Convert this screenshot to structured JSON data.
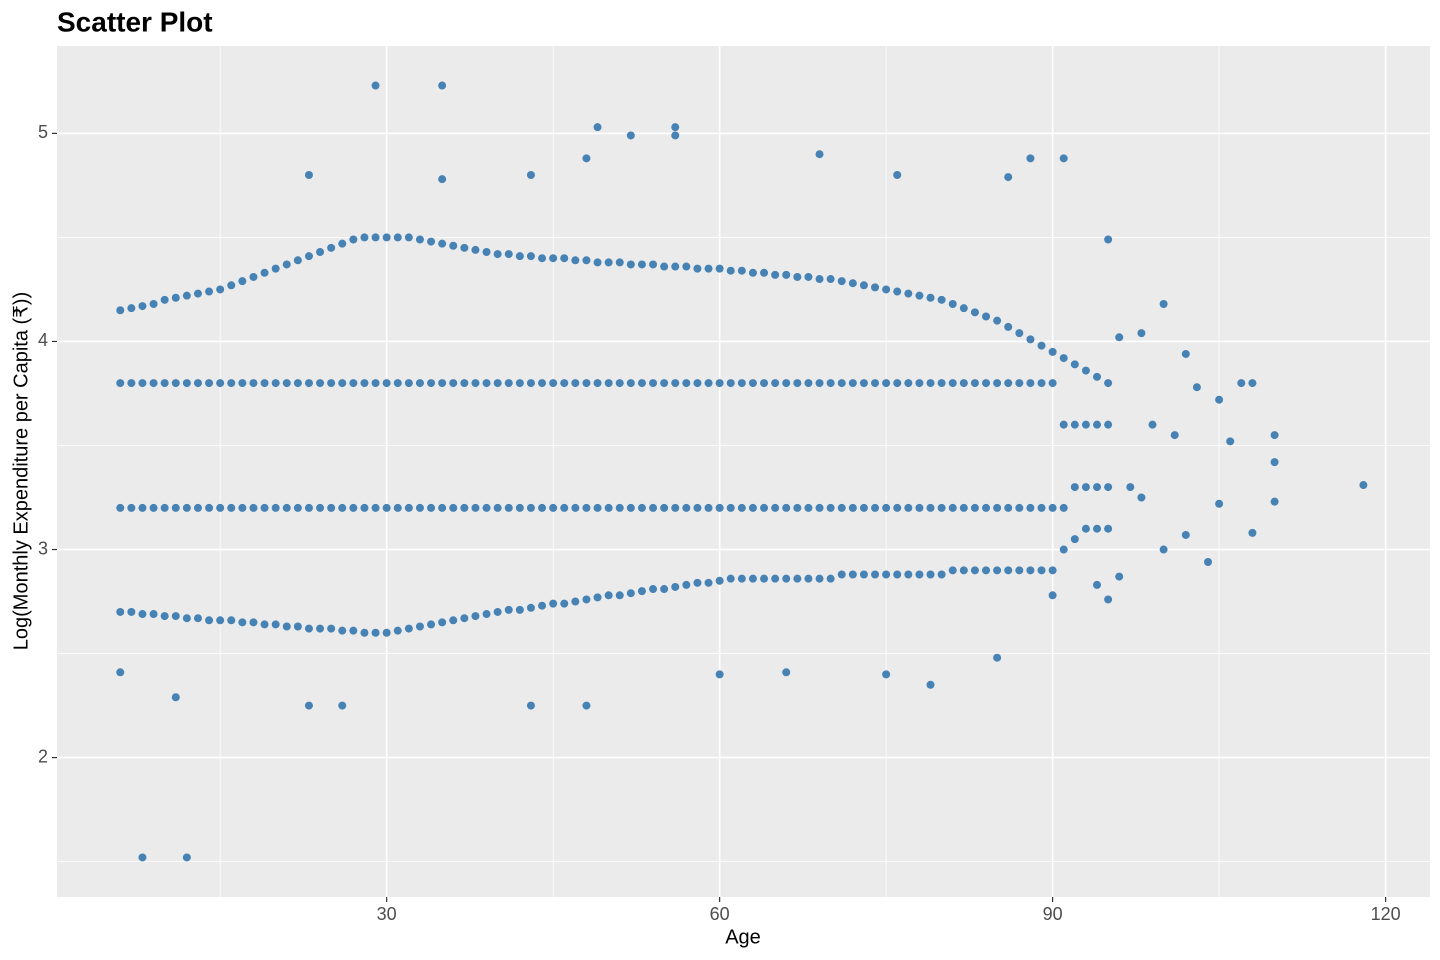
{
  "chart_data": {
    "type": "scatter",
    "title": "Scatter Plot",
    "x_label": "Age",
    "y_label": "Log(Monthly Expenditure per Capita (₹))",
    "color": "#4682b4",
    "grid": true,
    "xlim": [
      0.3,
      124
    ],
    "xticks": [
      30,
      60,
      90,
      120
    ],
    "ylim": [
      1.33,
      5.42
    ],
    "yticks": [
      2,
      3,
      4,
      5
    ],
    "x": [
      6,
      6,
      6,
      6,
      7,
      7,
      7,
      7,
      8,
      8,
      8,
      8,
      9,
      9,
      9,
      9,
      10,
      10,
      10,
      10,
      11,
      11,
      11,
      11,
      12,
      12,
      12,
      12,
      13,
      13,
      13,
      13,
      14,
      14,
      14,
      14,
      15,
      15,
      15,
      15,
      16,
      16,
      16,
      16,
      17,
      17,
      17,
      17,
      18,
      18,
      18,
      18,
      19,
      19,
      19,
      19,
      20,
      20,
      20,
      20,
      21,
      21,
      21,
      21,
      22,
      22,
      22,
      22,
      23,
      23,
      23,
      23,
      24,
      24,
      24,
      24,
      25,
      25,
      25,
      25,
      26,
      26,
      26,
      26,
      27,
      27,
      27,
      27,
      28,
      28,
      28,
      28,
      29,
      29,
      29,
      29,
      30,
      30,
      30,
      30,
      31,
      31,
      31,
      31,
      32,
      32,
      32,
      32,
      33,
      33,
      33,
      33,
      34,
      34,
      34,
      34,
      35,
      35,
      35,
      35,
      36,
      36,
      36,
      36,
      37,
      37,
      37,
      37,
      38,
      38,
      38,
      38,
      39,
      39,
      39,
      39,
      40,
      40,
      40,
      40,
      41,
      41,
      41,
      41,
      42,
      42,
      42,
      42,
      43,
      43,
      43,
      43,
      44,
      44,
      44,
      44,
      45,
      45,
      45,
      45,
      46,
      46,
      46,
      46,
      47,
      47,
      47,
      47,
      48,
      48,
      48,
      48,
      49,
      49,
      49,
      49,
      50,
      50,
      50,
      50,
      51,
      51,
      51,
      51,
      52,
      52,
      52,
      52,
      53,
      53,
      53,
      53,
      54,
      54,
      54,
      54,
      55,
      55,
      55,
      55,
      56,
      56,
      56,
      56,
      57,
      57,
      57,
      57,
      58,
      58,
      58,
      58,
      59,
      59,
      59,
      59,
      60,
      60,
      60,
      60,
      61,
      61,
      61,
      61,
      62,
      62,
      62,
      62,
      63,
      63,
      63,
      63,
      64,
      64,
      64,
      64,
      65,
      65,
      65,
      65,
      66,
      66,
      66,
      66,
      67,
      67,
      67,
      67,
      68,
      68,
      68,
      68,
      69,
      69,
      69,
      69,
      70,
      70,
      70,
      70,
      71,
      71,
      71,
      71,
      72,
      72,
      72,
      72,
      73,
      73,
      73,
      73,
      74,
      74,
      74,
      74,
      75,
      75,
      75,
      75,
      76,
      76,
      76,
      76,
      77,
      77,
      77,
      77,
      78,
      78,
      78,
      78,
      79,
      79,
      79,
      79,
      80,
      80,
      80,
      80,
      81,
      81,
      81,
      81,
      82,
      82,
      82,
      82,
      83,
      83,
      83,
      83,
      84,
      84,
      84,
      84,
      85,
      85,
      85,
      85,
      86,
      86,
      86,
      86,
      87,
      87,
      87,
      87,
      88,
      88,
      88,
      88,
      89,
      89,
      89,
      89,
      90,
      90,
      90,
      90,
      91,
      91,
      91,
      91,
      92,
      92,
      92,
      92,
      93,
      93,
      93,
      93,
      94,
      94,
      94,
      94,
      95,
      95,
      95,
      95,
      29,
      35,
      49,
      52,
      56,
      56,
      48,
      69,
      88,
      91,
      23,
      43,
      76,
      86,
      8,
      12,
      6,
      11,
      26,
      43,
      48,
      23,
      66,
      79,
      85,
      104,
      118,
      110,
      110,
      110,
      108,
      108,
      107,
      105,
      105,
      102,
      102,
      100,
      100,
      98,
      98,
      96,
      96,
      95,
      95,
      97,
      99,
      101,
      103,
      106,
      94,
      90,
      35,
      60,
      75
    ],
    "values": [
      2.7,
      3.2,
      3.8,
      4.15,
      2.7,
      3.2,
      3.8,
      4.16,
      2.69,
      3.2,
      3.8,
      4.17,
      2.69,
      3.2,
      3.8,
      4.18,
      2.68,
      3.2,
      3.8,
      4.2,
      2.68,
      3.2,
      3.8,
      4.21,
      2.67,
      3.2,
      3.8,
      4.22,
      2.67,
      3.2,
      3.8,
      4.23,
      2.66,
      3.2,
      3.8,
      4.24,
      2.66,
      3.2,
      3.8,
      4.25,
      2.66,
      3.2,
      3.8,
      4.27,
      2.65,
      3.2,
      3.8,
      4.29,
      2.65,
      3.2,
      3.8,
      4.31,
      2.64,
      3.2,
      3.8,
      4.33,
      2.64,
      3.2,
      3.8,
      4.35,
      2.63,
      3.2,
      3.8,
      4.37,
      2.63,
      3.2,
      3.8,
      4.39,
      2.62,
      3.2,
      3.8,
      4.41,
      2.62,
      3.2,
      3.8,
      4.43,
      2.62,
      3.2,
      3.8,
      4.45,
      2.61,
      3.2,
      3.8,
      4.47,
      2.61,
      3.2,
      3.8,
      4.49,
      2.6,
      3.2,
      3.8,
      4.5,
      2.6,
      3.2,
      3.8,
      4.5,
      2.6,
      3.2,
      3.8,
      4.5,
      2.61,
      3.2,
      3.8,
      4.5,
      2.62,
      3.2,
      3.8,
      4.5,
      2.63,
      3.2,
      3.8,
      4.49,
      2.64,
      3.2,
      3.8,
      4.48,
      2.65,
      3.2,
      3.8,
      4.47,
      2.66,
      3.2,
      3.8,
      4.46,
      2.67,
      3.2,
      3.8,
      4.45,
      2.68,
      3.2,
      3.8,
      4.44,
      2.69,
      3.2,
      3.8,
      4.43,
      2.7,
      3.2,
      3.8,
      4.42,
      2.71,
      3.2,
      3.8,
      4.42,
      2.71,
      3.2,
      3.8,
      4.41,
      2.72,
      3.2,
      3.8,
      4.41,
      2.73,
      3.2,
      3.8,
      4.4,
      2.74,
      3.2,
      3.8,
      4.4,
      2.74,
      3.2,
      3.8,
      4.4,
      2.75,
      3.2,
      3.8,
      4.39,
      2.76,
      3.2,
      3.8,
      4.39,
      2.77,
      3.2,
      3.8,
      4.38,
      2.78,
      3.2,
      3.8,
      4.38,
      2.78,
      3.2,
      3.8,
      4.38,
      2.79,
      3.2,
      3.8,
      4.37,
      2.8,
      3.2,
      3.8,
      4.37,
      2.81,
      3.2,
      3.8,
      4.37,
      2.81,
      3.2,
      3.8,
      4.36,
      2.82,
      3.2,
      3.8,
      4.36,
      2.83,
      3.2,
      3.8,
      4.36,
      2.84,
      3.2,
      3.8,
      4.35,
      2.84,
      3.2,
      3.8,
      4.35,
      2.85,
      3.2,
      3.8,
      4.35,
      2.86,
      3.2,
      3.8,
      4.34,
      2.86,
      3.2,
      3.8,
      4.34,
      2.86,
      3.2,
      3.8,
      4.33,
      2.86,
      3.2,
      3.8,
      4.33,
      2.86,
      3.2,
      3.8,
      4.32,
      2.86,
      3.2,
      3.8,
      4.32,
      2.86,
      3.2,
      3.8,
      4.31,
      2.86,
      3.2,
      3.8,
      4.31,
      2.86,
      3.2,
      3.8,
      4.3,
      2.86,
      3.2,
      3.8,
      4.3,
      2.88,
      3.2,
      3.8,
      4.29,
      2.88,
      3.2,
      3.8,
      4.28,
      2.88,
      3.2,
      3.8,
      4.27,
      2.88,
      3.2,
      3.8,
      4.26,
      2.88,
      3.2,
      3.8,
      4.25,
      2.88,
      3.2,
      3.8,
      4.24,
      2.88,
      3.2,
      3.8,
      4.23,
      2.88,
      3.2,
      3.8,
      4.22,
      2.88,
      3.2,
      3.8,
      4.21,
      2.88,
      3.2,
      3.8,
      4.2,
      2.9,
      3.2,
      3.8,
      4.18,
      2.9,
      3.2,
      3.8,
      4.16,
      2.9,
      3.2,
      3.8,
      4.14,
      2.9,
      3.2,
      3.8,
      4.12,
      2.9,
      3.2,
      3.8,
      4.1,
      2.9,
      3.2,
      3.8,
      4.07,
      2.9,
      3.2,
      3.8,
      4.04,
      2.9,
      3.2,
      3.8,
      4.01,
      2.9,
      3.2,
      3.8,
      3.98,
      2.9,
      3.2,
      3.8,
      3.95,
      3.0,
      3.2,
      3.6,
      3.92,
      3.05,
      3.3,
      3.6,
      3.89,
      3.1,
      3.3,
      3.6,
      3.86,
      3.1,
      3.3,
      3.6,
      3.83,
      3.1,
      3.3,
      3.6,
      3.8,
      5.23,
      5.23,
      5.03,
      4.99,
      5.03,
      4.99,
      4.88,
      4.9,
      4.88,
      4.88,
      4.8,
      4.8,
      4.8,
      4.79,
      1.52,
      1.52,
      2.41,
      2.29,
      2.25,
      2.25,
      2.25,
      2.25,
      2.41,
      2.35,
      2.48,
      2.94,
      3.31,
      3.55,
      3.42,
      3.23,
      3.8,
      3.08,
      3.8,
      3.72,
      3.22,
      3.94,
      3.07,
      4.18,
      3.0,
      4.04,
      3.25,
      4.02,
      2.87,
      4.49,
      2.76,
      3.3,
      3.6,
      3.55,
      3.78,
      3.52,
      2.83,
      2.78,
      4.78,
      2.4,
      2.4
    ]
  }
}
